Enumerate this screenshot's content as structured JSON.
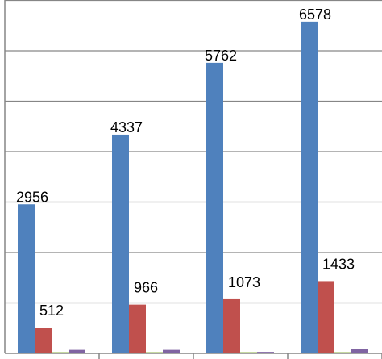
{
  "chart_data": {
    "type": "bar",
    "categories": [
      "",
      "",
      "",
      ""
    ],
    "series": [
      {
        "color": "#4F81BD",
        "values": [
          2956,
          4337,
          5762,
          6578
        ]
      },
      {
        "color": "#C0504D",
        "values": [
          512,
          966,
          1073,
          1433
        ]
      },
      {
        "color": "#9BBB59",
        "values": [
          25,
          25,
          25,
          25
        ]
      },
      {
        "color": "#8064A2",
        "values": [
          70,
          70,
          30,
          90
        ]
      }
    ],
    "data_labels": {
      "series_0": [
        "2956",
        "4337",
        "5762",
        "6578"
      ],
      "series_1": [
        "512",
        "966",
        "1073",
        "1433"
      ]
    },
    "ylim": [
      0,
      7000
    ],
    "y_gridline_step": 1000,
    "grid": true,
    "legend": "none"
  }
}
